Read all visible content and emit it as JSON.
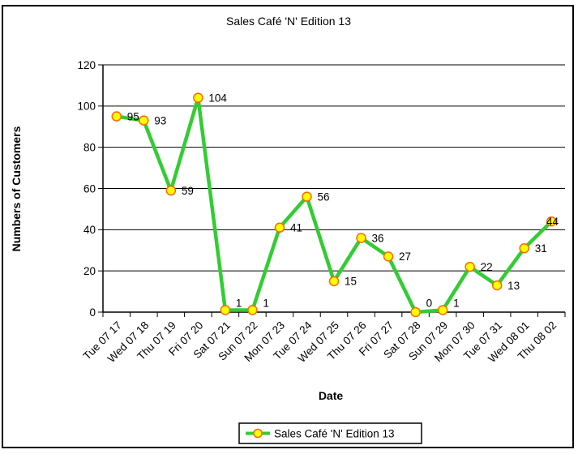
{
  "chart_data": {
    "type": "line",
    "title": "Sales Café 'N' Edition 13",
    "xlabel": "Date",
    "ylabel": "Numbers of Customers",
    "categories": [
      "Tue 07 17",
      "Wed 07 18",
      "Thu 07 19",
      "Fri 07 20",
      "Sat 07 21",
      "Sun 07 22",
      "Mon 07 23",
      "Tue 07 24",
      "Wed 07 25",
      "Thu 07 26",
      "Fri 07 27",
      "Sat 07 28",
      "Sun 07 29",
      "Mon 07 30",
      "Tue 07 31",
      "Wed 08 01",
      "Thu 08 02"
    ],
    "series": [
      {
        "name": "Sales Café 'N' Edition 13",
        "values": [
          95,
          93,
          59,
          104,
          1,
          1,
          41,
          56,
          15,
          36,
          27,
          0,
          1,
          22,
          13,
          31,
          44
        ]
      }
    ],
    "data_labels_visible": true,
    "ylim": [
      0,
      120
    ],
    "yticks": [
      0,
      20,
      40,
      60,
      80,
      100,
      120
    ],
    "grid": true,
    "legend_position": "bottom",
    "colors": {
      "line": "#33CC33",
      "marker_fill": "#FFFF00",
      "marker_stroke": "#FF6600",
      "axis": "#000000",
      "gridline": "#000000",
      "text": "#000000",
      "background": "#FFFFFF",
      "border": "#000000"
    }
  }
}
